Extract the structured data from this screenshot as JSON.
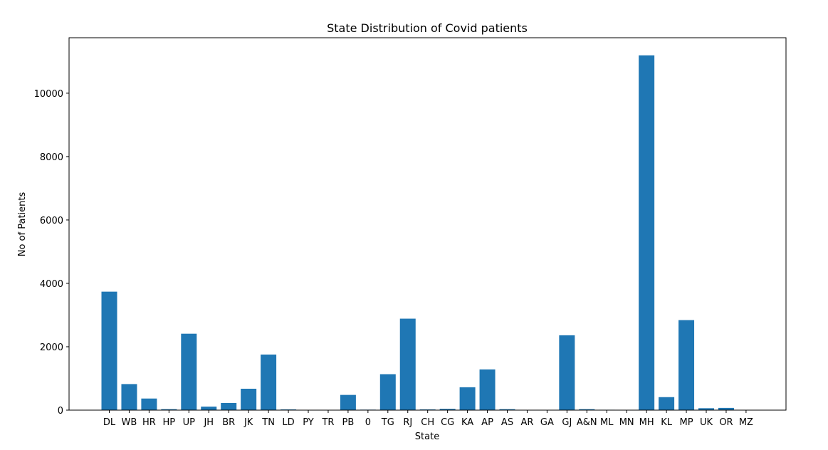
{
  "chart_data": {
    "type": "bar",
    "title": "State Distribution of Covid patients",
    "xlabel": "State",
    "ylabel": "No of Patients",
    "ylim": [
      0,
      11750
    ],
    "yticks": [
      0,
      2000,
      4000,
      6000,
      8000,
      10000
    ],
    "grid": false,
    "color": "#1f77b4",
    "categories": [
      "DL",
      "WB",
      "HR",
      "HP",
      "UP",
      "JH",
      "BR",
      "JK",
      "TN",
      "LD",
      "PY",
      "TR",
      "PB",
      "0",
      "TG",
      "RJ",
      "CH",
      "CG",
      "KA",
      "AP",
      "AS",
      "AR",
      "GA",
      "GJ",
      "A&N",
      "ML",
      "MN",
      "MH",
      "KL",
      "MP",
      "UK",
      "OR",
      "MZ"
    ],
    "values": [
      3738,
      822,
      366,
      30,
      2411,
      111,
      225,
      675,
      1754,
      22,
      8,
      2,
      480,
      15,
      1134,
      2886,
      22,
      40,
      722,
      1285,
      30,
      1,
      7,
      2362,
      30,
      12,
      2,
      11195,
      410,
      2841,
      60,
      70,
      1
    ]
  }
}
